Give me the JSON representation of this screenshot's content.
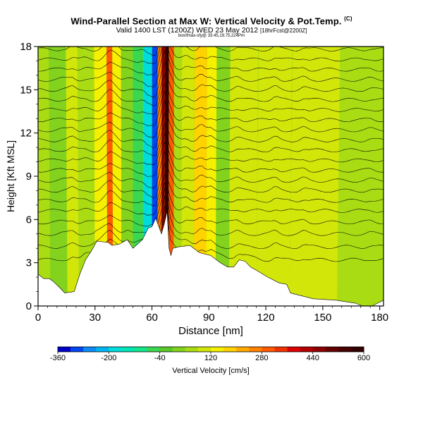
{
  "header": {
    "title": "Wind-Parallel Section at Max W: Vertical Velocity & Pot.Temp.",
    "title_mark": "(C)",
    "valid_line": "Valid 1400 LST (1200Z) WED 23 May 2012",
    "valid_suffix": "[18hrFcst@2200Z]",
    "credit_line": "box/fmax-sfy@ 33.45,19.75,224Pm"
  },
  "chart_data": {
    "type": "heatmap",
    "title": "Wind-Parallel Section at Max W: Vertical Velocity & Pot.Temp.",
    "xlabel": "Distance [nm]",
    "ylabel": "Height [Kft MSL]",
    "xlim": [
      0,
      182
    ],
    "ylim": [
      0,
      18
    ],
    "x_ticks": [
      0,
      30,
      60,
      90,
      120,
      150,
      180
    ],
    "y_ticks": [
      0,
      3,
      6,
      9,
      12,
      15,
      18
    ],
    "grid": false,
    "colorbar": {
      "label": "Vertical Velocity [cm/s]",
      "tick_labels": [
        "-360",
        "-200",
        "-40",
        "120",
        "280",
        "440",
        "600"
      ],
      "tick_values": [
        -360,
        -200,
        -40,
        120,
        280,
        440,
        600
      ],
      "step": 40,
      "colors": [
        "#0000c8",
        "#0046f0",
        "#0a8cf5",
        "#00b4f0",
        "#00dcdc",
        "#00e6b4",
        "#14e68c",
        "#3cd750",
        "#5ac828",
        "#82d21e",
        "#aadc14",
        "#d2e60a",
        "#f5f000",
        "#ffd200",
        "#ffaa00",
        "#ff8200",
        "#ff5a00",
        "#f03200",
        "#dc0000",
        "#b40000",
        "#8c0000",
        "#640000",
        "#460000",
        "#320000"
      ]
    },
    "background_w": 60,
    "w_bands": [
      {
        "x": 13,
        "w": 30
      },
      {
        "x": 18,
        "w": 100
      },
      {
        "x": 25,
        "w": 40
      },
      {
        "x": 35,
        "w": 140
      },
      {
        "x": 38,
        "w": 300
      },
      {
        "x": 41,
        "w": 140
      },
      {
        "x": 47,
        "w": 20
      },
      {
        "x": 53,
        "w": -60
      },
      {
        "x": 58,
        "w": -180
      },
      {
        "x": 62,
        "w": -320
      },
      {
        "x": 64,
        "w": 260
      },
      {
        "x": 66,
        "w": 460
      },
      {
        "x": 67.5,
        "w": 600
      },
      {
        "x": 70,
        "w": 300
      },
      {
        "x": 73,
        "w": 40
      },
      {
        "x": 78,
        "w": 100
      },
      {
        "x": 86,
        "w": 160
      },
      {
        "x": 91,
        "w": 120
      },
      {
        "x": 96,
        "w": 20
      },
      {
        "x": 105,
        "w": 80
      },
      {
        "x": 125,
        "w": 100
      },
      {
        "x": 140,
        "w": 80
      },
      {
        "x": 175,
        "w": 40
      }
    ],
    "terrain": [
      [
        0,
        2.2
      ],
      [
        3,
        1.9
      ],
      [
        6,
        1.9
      ],
      [
        8,
        1.7
      ],
      [
        12,
        1.2
      ],
      [
        14,
        0.9
      ],
      [
        19,
        1.0
      ],
      [
        22,
        2.2
      ],
      [
        25,
        3.2
      ],
      [
        28,
        3.8
      ],
      [
        31,
        4.5
      ],
      [
        37,
        4.4
      ],
      [
        39,
        4.2
      ],
      [
        43,
        4.3
      ],
      [
        47,
        4.6
      ],
      [
        50,
        4.0
      ],
      [
        55,
        4.6
      ],
      [
        58,
        5.4
      ],
      [
        60,
        5.5
      ],
      [
        62,
        6.1
      ],
      [
        65,
        5.0
      ],
      [
        66.5,
        5.7
      ],
      [
        68,
        6.6
      ],
      [
        69,
        4.0
      ],
      [
        70,
        3.5
      ],
      [
        71,
        4.0
      ],
      [
        74,
        4.1
      ],
      [
        80,
        4.2
      ],
      [
        85,
        3.7
      ],
      [
        91,
        3.5
      ],
      [
        96,
        3.0
      ],
      [
        100,
        2.7
      ],
      [
        103,
        2.7
      ],
      [
        106,
        3.2
      ],
      [
        109,
        3.1
      ],
      [
        112,
        2.7
      ],
      [
        116,
        2.4
      ],
      [
        121,
        2.0
      ],
      [
        127,
        1.6
      ],
      [
        131,
        1.5
      ],
      [
        133,
        0.9
      ],
      [
        139,
        0.7
      ],
      [
        145,
        0.5
      ],
      [
        151,
        0.45
      ],
      [
        157,
        0.4
      ],
      [
        162,
        0.3
      ],
      [
        167,
        0.2
      ],
      [
        171,
        0.0
      ],
      [
        176,
        0.0
      ],
      [
        179,
        0.2
      ],
      [
        182,
        0.4
      ]
    ],
    "isentrope_levels": [
      3.2,
      4.1,
      5.0,
      5.8,
      6.6,
      7.3,
      8.0,
      8.7,
      9.4,
      10.1,
      10.8,
      11.5,
      12.2,
      12.9,
      13.6,
      14.3,
      15.0,
      15.7,
      16.4,
      17.1,
      17.8
    ]
  }
}
